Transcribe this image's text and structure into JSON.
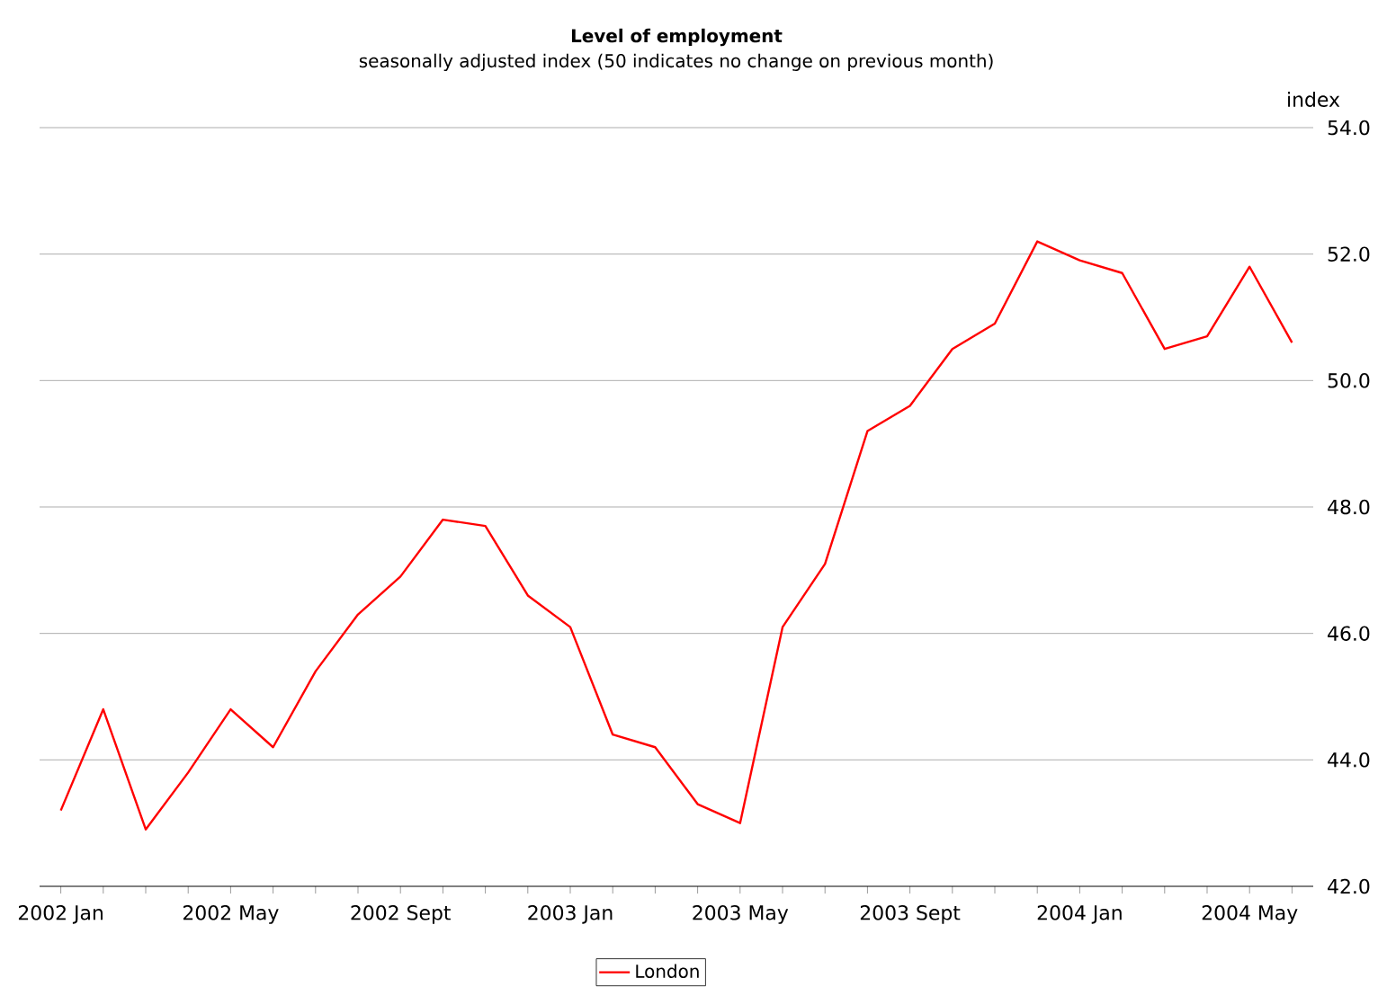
{
  "chart_data": {
    "type": "line",
    "title": "Level of employment",
    "subtitle": "seasonally adjusted index (50 indicates no change on previous month)",
    "ylabel": "index",
    "categories": [
      "2002 Jan",
      null,
      null,
      null,
      "2002 May",
      null,
      null,
      null,
      "2002 Sept",
      null,
      null,
      null,
      "2003 Jan",
      null,
      null,
      null,
      "2003 May",
      null,
      null,
      null,
      "2003 Sept",
      null,
      null,
      null,
      "2004 Jan",
      null,
      null,
      null,
      "2004 May",
      null
    ],
    "series": [
      {
        "name": "London",
        "color": "#ff0000",
        "values": [
          43.2,
          44.8,
          42.9,
          43.8,
          44.8,
          44.2,
          45.4,
          46.3,
          46.9,
          47.8,
          47.7,
          46.6,
          46.1,
          44.4,
          44.2,
          43.3,
          43.0,
          46.1,
          47.1,
          49.2,
          49.6,
          50.5,
          50.9,
          52.2,
          51.9,
          51.7,
          50.5,
          50.7,
          51.8,
          50.6
        ]
      }
    ],
    "ylim": [
      42,
      54
    ],
    "yticks": [
      {
        "value": 42,
        "label": "42.0"
      },
      {
        "value": 44,
        "label": "44.0"
      },
      {
        "value": 46,
        "label": "46.0"
      },
      {
        "value": 48,
        "label": "48.0"
      },
      {
        "value": 50,
        "label": "50.0"
      },
      {
        "value": 52,
        "label": "52.0"
      },
      {
        "value": 54,
        "label": "54.0"
      }
    ],
    "grid": "y",
    "legend": "bottom",
    "marker": "none",
    "line_style": "solid"
  }
}
